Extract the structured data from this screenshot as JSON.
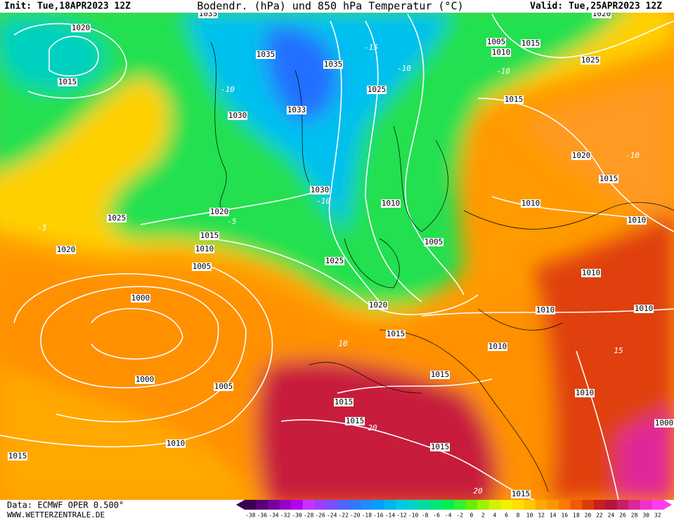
{
  "header": {
    "init": "Init: Tue,18APR2023 12Z",
    "title": "Bodendr. (hPa) und 850 hPa Temperatur (°C)",
    "valid": "Valid: Tue,25APR2023 12Z"
  },
  "map": {
    "isobar_labels": [
      "1035",
      "1020",
      "1035",
      "1035",
      "1015",
      "1030",
      "1033",
      "1025",
      "1030",
      "1010",
      "1020",
      "1025",
      "1015",
      "1010",
      "1020",
      "1005",
      "1025",
      "1005",
      "1020",
      "1000",
      "1000",
      "1005",
      "1015",
      "1015",
      "1015",
      "1015",
      "1010",
      "1015",
      "1015",
      "1015",
      "1010",
      "1010",
      "1010",
      "1010",
      "1010",
      "1010",
      "1010",
      "1015",
      "1020",
      "1015",
      "1025",
      "1005",
      "1010",
      "1015",
      "1020",
      "1000"
    ],
    "temperature_labels": [
      "-10",
      "-10",
      "-15",
      "-10",
      "-5",
      "-5",
      "10",
      "15",
      "20",
      "20",
      "-10",
      "-10"
    ]
  },
  "footer": {
    "data": "Data: ECMWF OPER 0.500°",
    "site": "WWW.WETTERZENTRALE.DE"
  },
  "colorbar": {
    "labels": [
      -38,
      -36,
      -34,
      -32,
      -30,
      -28,
      -26,
      -24,
      -22,
      -20,
      -18,
      -16,
      -14,
      -12,
      -10,
      -8,
      -6,
      -4,
      -2,
      0,
      2,
      4,
      6,
      8,
      10,
      12,
      14,
      16,
      18,
      20,
      22,
      24,
      26,
      28,
      30,
      32
    ],
    "colors": [
      "#3c0050",
      "#5a0078",
      "#7800a0",
      "#9600c8",
      "#b400f0",
      "#c832ff",
      "#a03cff",
      "#7850ff",
      "#5064ff",
      "#3278ff",
      "#1e8cff",
      "#00a0ff",
      "#00b4f0",
      "#00c8e6",
      "#00d2c8",
      "#00dca0",
      "#00e678",
      "#00f050",
      "#32f032",
      "#64f000",
      "#a0f000",
      "#d2f000",
      "#f0f000",
      "#ffe100",
      "#ffc800",
      "#ffaa00",
      "#ff9600",
      "#ff7800",
      "#f05a00",
      "#dc3c00",
      "#c81e1e",
      "#b4143c",
      "#c81e64",
      "#dc2896",
      "#f032c8",
      "#ff3cf0"
    ]
  }
}
